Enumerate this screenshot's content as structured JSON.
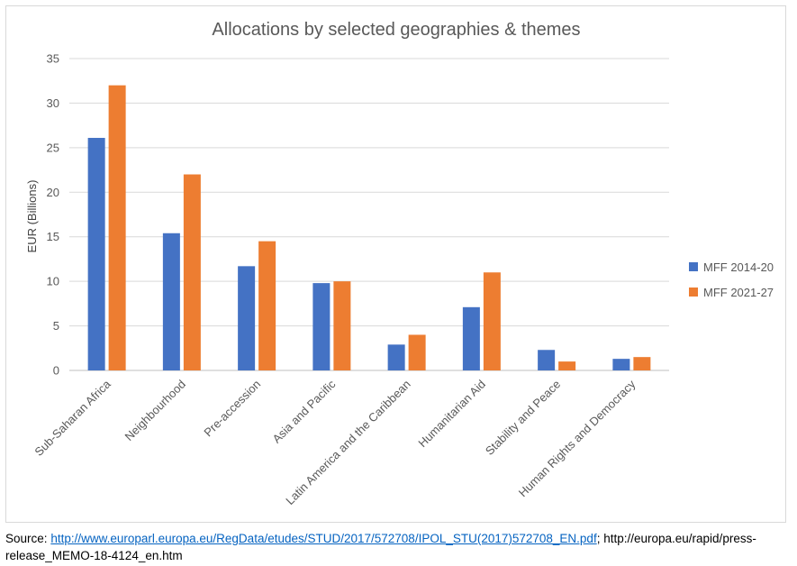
{
  "chart_data": {
    "type": "bar",
    "title": "Allocations by selected geographies & themes",
    "xlabel": "",
    "ylabel": "EUR (Billions)",
    "ylim": [
      0,
      35
    ],
    "yticks": [
      0,
      5,
      10,
      15,
      20,
      25,
      30,
      35
    ],
    "grid": true,
    "legend_position": "right",
    "categories": [
      "Sub-Saharan Africa",
      "Neighbourhood",
      "Pre-accession",
      "Asia and Pacific",
      "Latin America and the Caribbean",
      "Humanitarian Aid",
      "Stability and Peace",
      "Human Rights and Democracy"
    ],
    "series": [
      {
        "name": "MFF 2014-20",
        "color": "#4472c4",
        "values": [
          26.1,
          15.4,
          11.7,
          9.8,
          2.9,
          7.1,
          2.3,
          1.3
        ]
      },
      {
        "name": "MFF 2021-27",
        "color": "#ed7d31",
        "values": [
          32.0,
          22.0,
          14.5,
          10.0,
          4.0,
          11.0,
          1.0,
          1.5
        ]
      }
    ]
  },
  "source": {
    "label": "Source",
    "colon": ":",
    "link1": "http://www.europarl.europa.eu/RegData/etudes/STUD/2017/572708/IPOL_STU(2017)572708_EN.pdf",
    "separator": ";",
    "text2": " http://europa.eu/rapid/press-release_MEMO-18-4124_en.htm"
  }
}
